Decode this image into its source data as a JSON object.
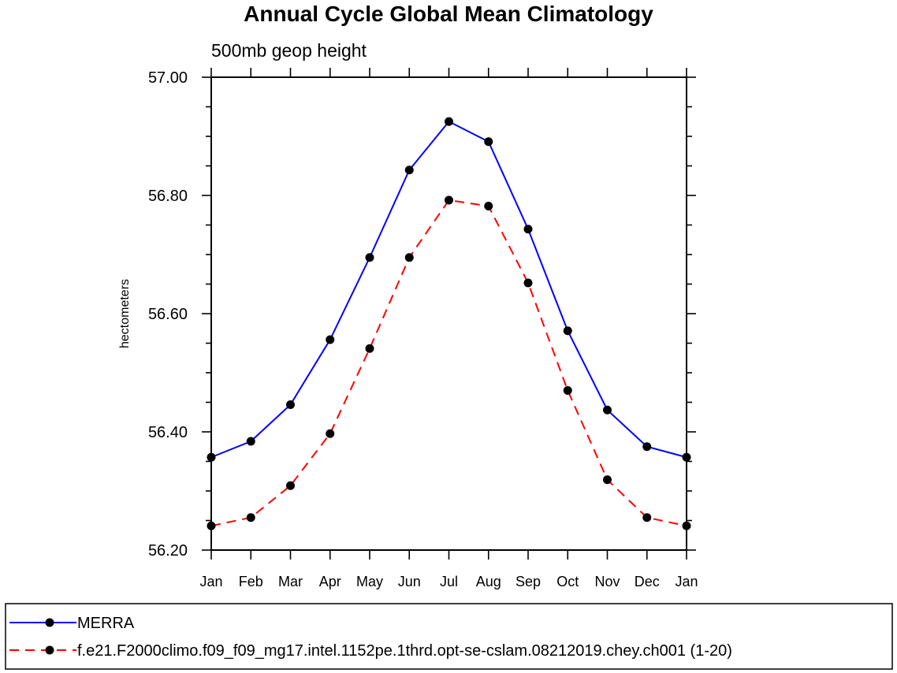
{
  "chart_data": {
    "type": "line",
    "title": "Annual Cycle Global Mean Climatology",
    "subtitle": "500mb geop height",
    "xlabel": "",
    "ylabel": "hectometers",
    "categories": [
      "Jan",
      "Feb",
      "Mar",
      "Apr",
      "May",
      "Jun",
      "Jul",
      "Aug",
      "Sep",
      "Oct",
      "Nov",
      "Dec",
      "Jan"
    ],
    "ylim": [
      56.2,
      57.0
    ],
    "yticks": [
      "56.20",
      "56.40",
      "56.60",
      "56.80",
      "57.00"
    ],
    "grid": false,
    "legend_position": "bottom",
    "series": [
      {
        "name": "MERRA",
        "color": "#0000ff",
        "dash": "solid",
        "marker": "filled-circle",
        "values": [
          56.357,
          56.384,
          56.446,
          56.556,
          56.695,
          56.843,
          56.925,
          56.891,
          56.743,
          56.571,
          56.437,
          56.375,
          56.357
        ]
      },
      {
        "name": "f.e21.F2000climo.f09_f09_mg17.intel.1152pe.1thrd.opt-se-cslam.08212019.chey.ch001 (1-20)",
        "color": "#ff0000",
        "dash": "dashed",
        "marker": "filled-circle",
        "values": [
          56.241,
          56.255,
          56.309,
          56.397,
          56.541,
          56.695,
          56.792,
          56.782,
          56.652,
          56.47,
          56.319,
          56.255,
          56.241
        ]
      }
    ]
  }
}
